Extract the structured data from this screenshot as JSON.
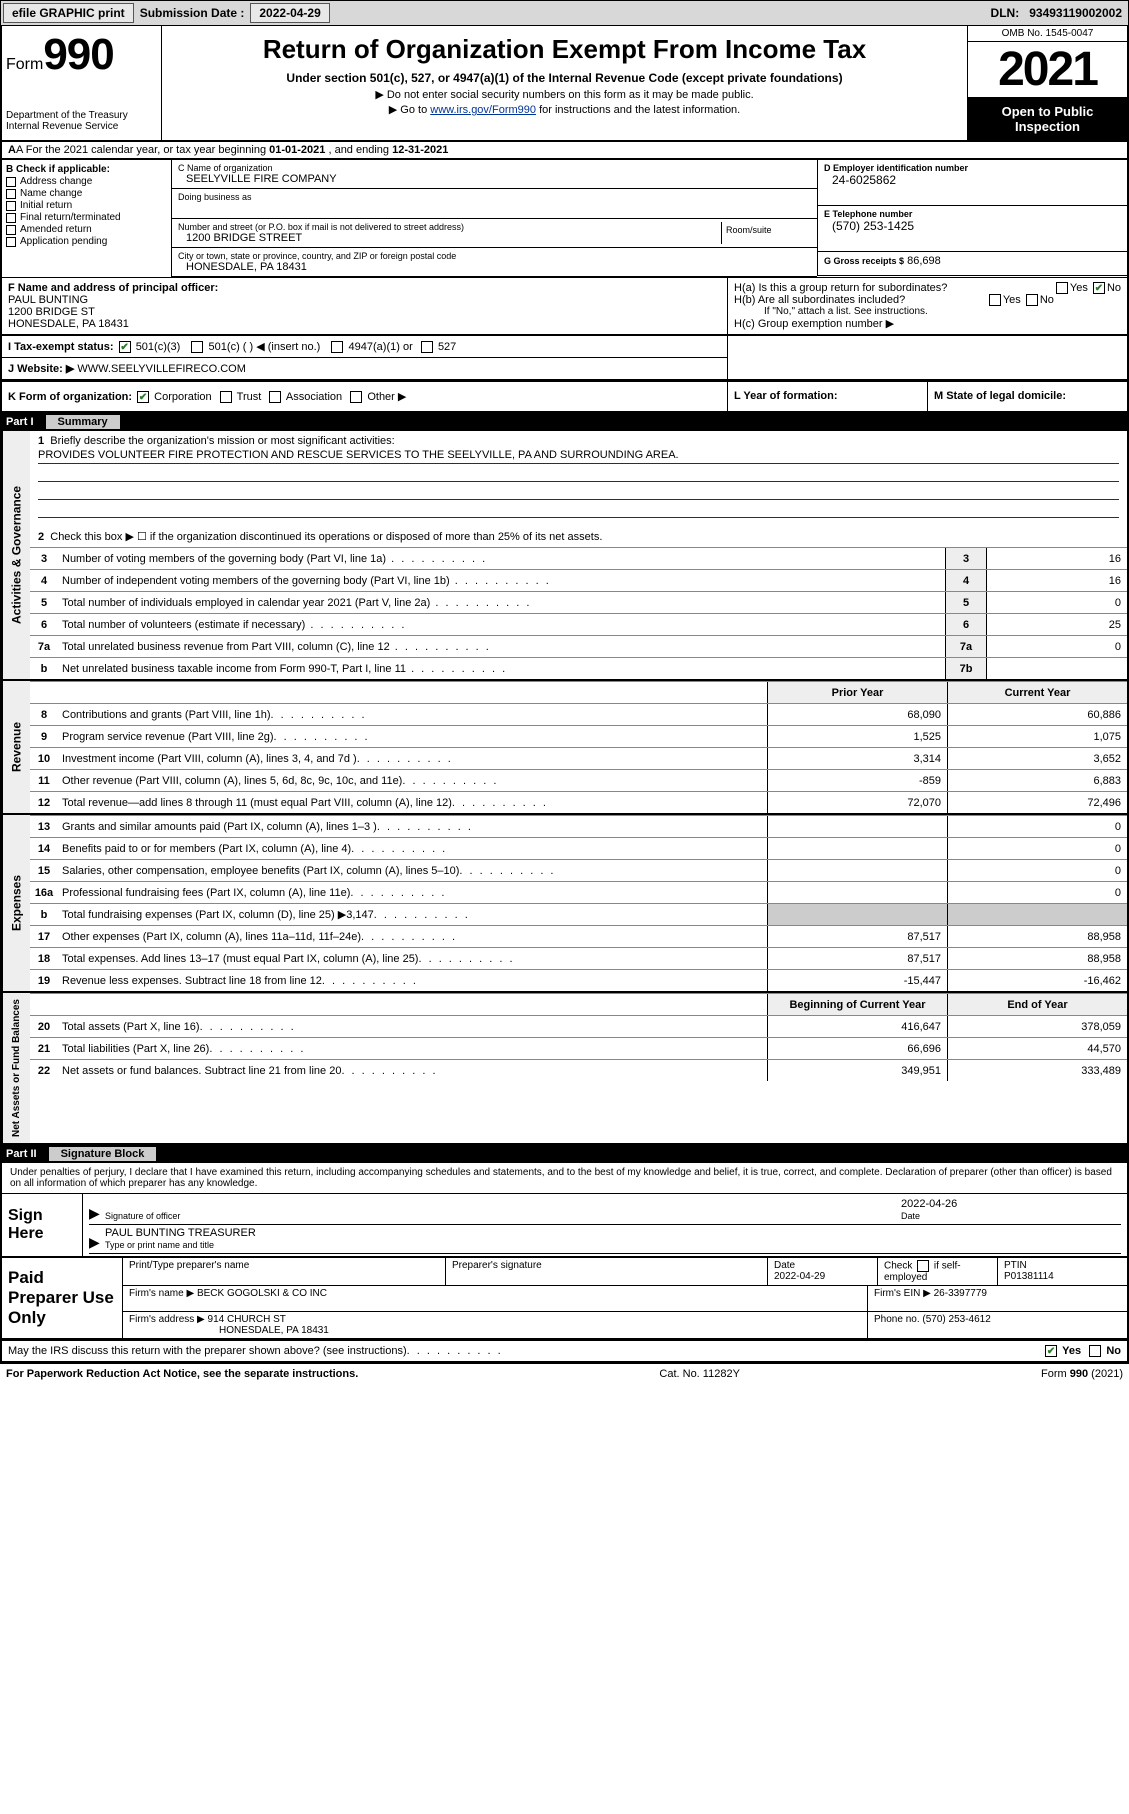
{
  "topbar": {
    "efile": "efile GRAPHIC print",
    "sub_label": "Submission Date :",
    "sub_date": "2022-04-29",
    "dln_label": "DLN:",
    "dln": "93493119002002"
  },
  "header": {
    "form_prefix": "Form",
    "form_num": "990",
    "dept": "Department of the Treasury",
    "irs": "Internal Revenue Service",
    "title": "Return of Organization Exempt From Income Tax",
    "sub1": "Under section 501(c), 527, or 4947(a)(1) of the Internal Revenue Code (except private foundations)",
    "sub2": "▶ Do not enter social security numbers on this form as it may be made public.",
    "sub3_pre": "▶ Go to ",
    "sub3_link": "www.irs.gov/Form990",
    "sub3_post": " for instructions and the latest information.",
    "omb": "OMB No. 1545-0047",
    "year": "2021",
    "inspect": "Open to Public Inspection"
  },
  "rowA": {
    "prefix": "A For the 2021 calendar year, or tax year beginning ",
    "begin": "01-01-2021",
    "mid": " , and ending ",
    "end": "12-31-2021"
  },
  "B": {
    "label": "B Check if applicable:",
    "opts": [
      "Address change",
      "Name change",
      "Initial return",
      "Final return/terminated",
      "Amended return",
      "Application pending"
    ]
  },
  "C": {
    "name_lab": "C Name of organization",
    "name": "SEELYVILLE FIRE COMPANY",
    "dba_lab": "Doing business as",
    "dba": "",
    "addr_lab": "Number and street (or P.O. box if mail is not delivered to street address)",
    "room_lab": "Room/suite",
    "addr": "1200 BRIDGE STREET",
    "city_lab": "City or town, state or province, country, and ZIP or foreign postal code",
    "city": "HONESDALE, PA  18431"
  },
  "D": {
    "lab": "D Employer identification number",
    "val": "24-6025862"
  },
  "E": {
    "lab": "E Telephone number",
    "val": "(570) 253-1425"
  },
  "G": {
    "lab": "G Gross receipts $",
    "val": "86,698"
  },
  "F": {
    "lab": "F Name and address of principal officer:",
    "name": "PAUL BUNTING",
    "addr1": "1200 BRIDGE ST",
    "addr2": "HONESDALE, PA  18431"
  },
  "H": {
    "a": "H(a)  Is this a group return for subordinates?",
    "b": "H(b)  Are all subordinates included?",
    "b_note": "If \"No,\" attach a list. See instructions.",
    "c": "H(c)  Group exemption number ▶",
    "yes": "Yes",
    "no": "No"
  },
  "I": {
    "lab": "I   Tax-exempt status:",
    "o1": "501(c)(3)",
    "o2": "501(c) (   ) ◀ (insert no.)",
    "o3": "4947(a)(1) or",
    "o4": "527"
  },
  "J": {
    "lab": "J   Website: ▶",
    "val": "WWW.SEELYVILLEFIRECO.COM"
  },
  "K": {
    "lab": "K Form of organization:",
    "opts": [
      "Corporation",
      "Trust",
      "Association",
      "Other ▶"
    ],
    "L": "L Year of formation:",
    "M": "M State of legal domicile:"
  },
  "part1": {
    "bar": "Part I",
    "title": "Summary"
  },
  "summary": {
    "side1": "Activities & Governance",
    "l1": "Briefly describe the organization's mission or most significant activities:",
    "mission": "PROVIDES VOLUNTEER FIRE PROTECTION AND RESCUE SERVICES TO THE SEELYVILLE, PA AND SURROUNDING AREA.",
    "l2": "Check this box ▶ ☐ if the organization discontinued its operations or disposed of more than 25% of its net assets.",
    "rows_gov": [
      {
        "n": "3",
        "d": "Number of voting members of the governing body (Part VI, line 1a)",
        "b": "3",
        "v": "16"
      },
      {
        "n": "4",
        "d": "Number of independent voting members of the governing body (Part VI, line 1b)",
        "b": "4",
        "v": "16"
      },
      {
        "n": "5",
        "d": "Total number of individuals employed in calendar year 2021 (Part V, line 2a)",
        "b": "5",
        "v": "0"
      },
      {
        "n": "6",
        "d": "Total number of volunteers (estimate if necessary)",
        "b": "6",
        "v": "25"
      },
      {
        "n": "7a",
        "d": "Total unrelated business revenue from Part VIII, column (C), line 12",
        "b": "7a",
        "v": "0"
      },
      {
        "n": "b",
        "d": "Net unrelated business taxable income from Form 990-T, Part I, line 11",
        "b": "7b",
        "v": ""
      }
    ],
    "head_prior": "Prior Year",
    "head_curr": "Current Year",
    "side2": "Revenue",
    "rows_rev": [
      {
        "n": "8",
        "d": "Contributions and grants (Part VIII, line 1h)",
        "p": "68,090",
        "c": "60,886"
      },
      {
        "n": "9",
        "d": "Program service revenue (Part VIII, line 2g)",
        "p": "1,525",
        "c": "1,075"
      },
      {
        "n": "10",
        "d": "Investment income (Part VIII, column (A), lines 3, 4, and 7d )",
        "p": "3,314",
        "c": "3,652"
      },
      {
        "n": "11",
        "d": "Other revenue (Part VIII, column (A), lines 5, 6d, 8c, 9c, 10c, and 11e)",
        "p": "-859",
        "c": "6,883"
      },
      {
        "n": "12",
        "d": "Total revenue—add lines 8 through 11 (must equal Part VIII, column (A), line 12)",
        "p": "72,070",
        "c": "72,496"
      }
    ],
    "side3": "Expenses",
    "rows_exp": [
      {
        "n": "13",
        "d": "Grants and similar amounts paid (Part IX, column (A), lines 1–3 )",
        "p": "",
        "c": "0"
      },
      {
        "n": "14",
        "d": "Benefits paid to or for members (Part IX, column (A), line 4)",
        "p": "",
        "c": "0"
      },
      {
        "n": "15",
        "d": "Salaries, other compensation, employee benefits (Part IX, column (A), lines 5–10)",
        "p": "",
        "c": "0"
      },
      {
        "n": "16a",
        "d": "Professional fundraising fees (Part IX, column (A), line 11e)",
        "p": "",
        "c": "0"
      },
      {
        "n": "b",
        "d": "Total fundraising expenses (Part IX, column (D), line 25) ▶3,147",
        "p": "SHADE",
        "c": "SHADE"
      },
      {
        "n": "17",
        "d": "Other expenses (Part IX, column (A), lines 11a–11d, 11f–24e)",
        "p": "87,517",
        "c": "88,958"
      },
      {
        "n": "18",
        "d": "Total expenses. Add lines 13–17 (must equal Part IX, column (A), line 25)",
        "p": "87,517",
        "c": "88,958"
      },
      {
        "n": "19",
        "d": "Revenue less expenses. Subtract line 18 from line 12",
        "p": "-15,447",
        "c": "-16,462"
      }
    ],
    "side4": "Net Assets or Fund Balances",
    "head_beg": "Beginning of Current Year",
    "head_end": "End of Year",
    "rows_net": [
      {
        "n": "20",
        "d": "Total assets (Part X, line 16)",
        "p": "416,647",
        "c": "378,059"
      },
      {
        "n": "21",
        "d": "Total liabilities (Part X, line 26)",
        "p": "66,696",
        "c": "44,570"
      },
      {
        "n": "22",
        "d": "Net assets or fund balances. Subtract line 21 from line 20",
        "p": "349,951",
        "c": "333,489"
      }
    ]
  },
  "part2": {
    "bar": "Part II",
    "title": "Signature Block"
  },
  "sig": {
    "decl": "Under penalties of perjury, I declare that I have examined this return, including accompanying schedules and statements, and to the best of my knowledge and belief, it is true, correct, and complete. Declaration of preparer (other than officer) is based on all information of which preparer has any knowledge.",
    "sign_here": "Sign Here",
    "sig_of": "Signature of officer",
    "date_lab": "Date",
    "date": "2022-04-26",
    "name": "PAUL BUNTING TREASURER",
    "type_lab": "Type or print name and title"
  },
  "prep": {
    "lab": "Paid Preparer Use Only",
    "h1": "Print/Type preparer's name",
    "h2": "Preparer's signature",
    "h3": "Date",
    "h3v": "2022-04-29",
    "h4a": "Check",
    "h4b": "if self-employed",
    "h5": "PTIN",
    "h5v": "P01381114",
    "firm_lab": "Firm's name    ▶",
    "firm": "BECK GOGOLSKI & CO INC",
    "ein_lab": "Firm's EIN ▶",
    "ein": "26-3397779",
    "addr_lab": "Firm's address ▶",
    "addr1": "914 CHURCH ST",
    "addr2": "HONESDALE, PA  18431",
    "phone_lab": "Phone no.",
    "phone": "(570) 253-4612"
  },
  "discuss": {
    "q": "May the IRS discuss this return with the preparer shown above? (see instructions)",
    "yes": "Yes",
    "no": "No"
  },
  "footer": {
    "left": "For Paperwork Reduction Act Notice, see the separate instructions.",
    "mid": "Cat. No. 11282Y",
    "right": "Form 990 (2021)"
  }
}
